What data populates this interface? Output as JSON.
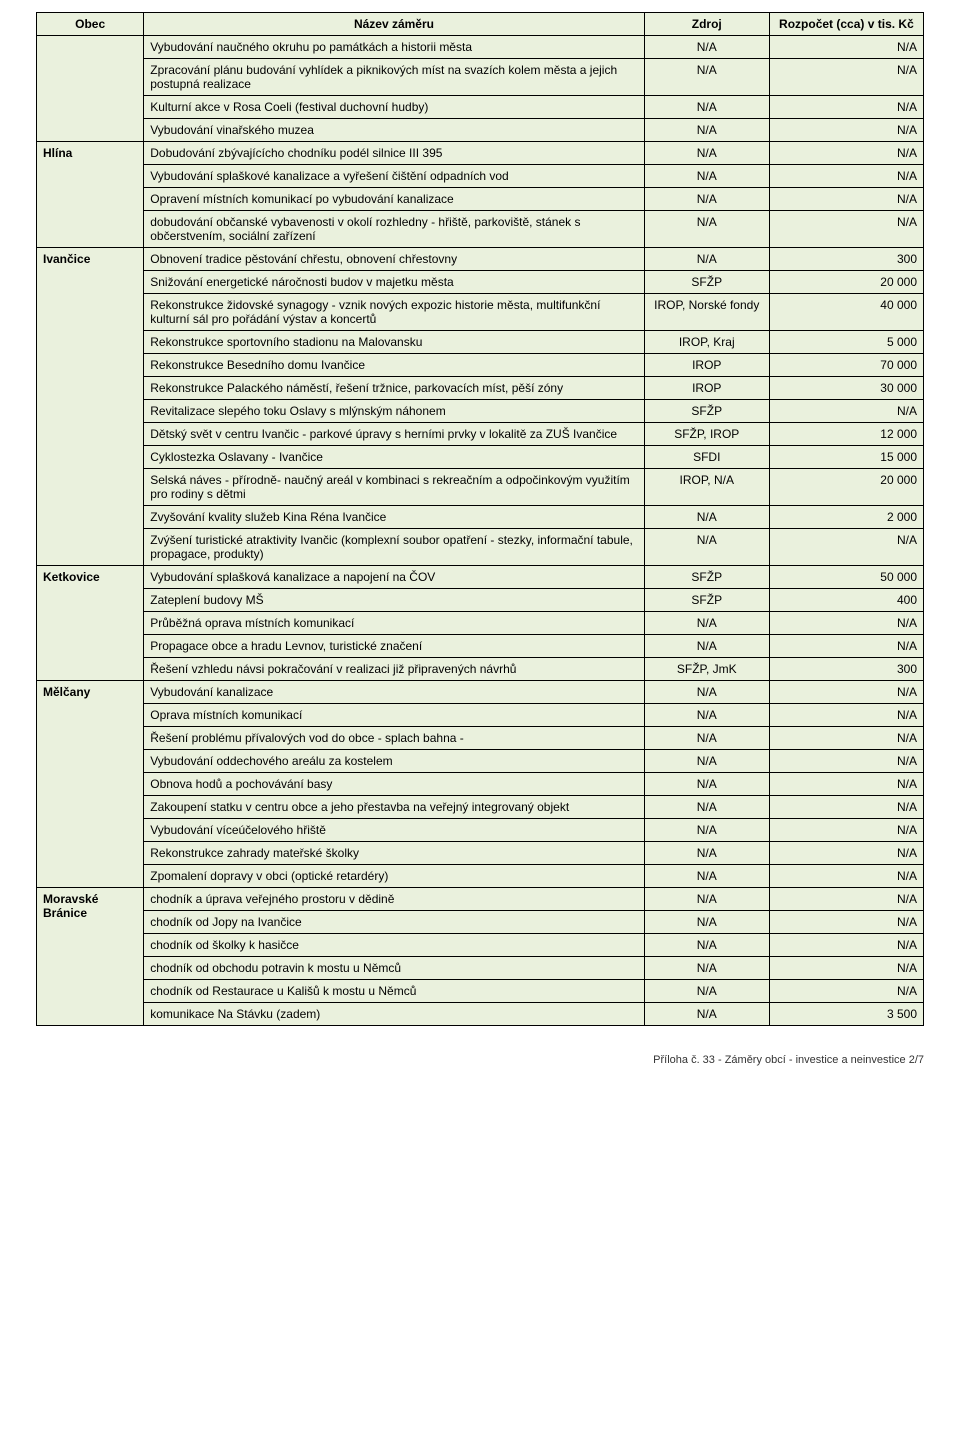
{
  "header": {
    "col_obec": "Obec",
    "col_nazev": "Název záměru",
    "col_zdroj": "Zdroj",
    "col_cena": "Rozpočet (cca) v tis. Kč"
  },
  "footer": "Příloha č. 33 - Záměry obcí - investice a neinvestice 2/7",
  "groups": [
    {
      "obec": "",
      "rows": [
        {
          "nazev": "Vybudování naučného okruhu po památkách a historii města",
          "zdroj": "N/A",
          "cena": "N/A"
        },
        {
          "nazev": "Zpracování  plánu budování vyhlídek a piknikových míst na svazích kolem města a jejich postupná realizace",
          "zdroj": "N/A",
          "cena": "N/A"
        },
        {
          "nazev": "Kulturní akce v Rosa Coeli (festival duchovní hudby)",
          "zdroj": "N/A",
          "cena": "N/A"
        },
        {
          "nazev": "Vybudování vinařského  muzea",
          "zdroj": "N/A",
          "cena": "N/A"
        }
      ]
    },
    {
      "obec": "Hlína",
      "rows": [
        {
          "nazev": "Dobudování zbývajícícho  chodníku podél silnice III 395",
          "zdroj": "N/A",
          "cena": "N/A"
        },
        {
          "nazev": "Vybudování splaškové kanalizace a vyřešení čištění odpadních vod",
          "zdroj": "N/A",
          "cena": "N/A"
        },
        {
          "nazev": "Opravení místních komunikací po vybudování kanalizace",
          "zdroj": "N/A",
          "cena": "N/A"
        },
        {
          "nazev": "dobudování občanské vybavenosti v okolí rozhledny - hřiště, parkoviště, stánek s občerstvením, sociální zařízení",
          "zdroj": "N/A",
          "cena": "N/A"
        }
      ]
    },
    {
      "obec": "Ivančice",
      "rows": [
        {
          "nazev": "Obnovení tradice pěstování chřestu, obnovení chřestovny",
          "zdroj": "N/A",
          "cena": "300"
        },
        {
          "nazev": "Snižování energetické náročnosti budov v majetku města",
          "zdroj": "SFŽP",
          "cena": "20 000"
        },
        {
          "nazev": "Rekonstrukce židovské synagogy - vznik nových expozic historie města, multifunkční kulturní sál pro pořádání výstav a koncertů",
          "zdroj": "IROP, Norské fondy",
          "cena": "40 000"
        },
        {
          "nazev": "Rekonstrukce sportovního stadionu na Malovansku",
          "zdroj": "IROP, Kraj",
          "cena": "5 000"
        },
        {
          "nazev": "Rekonstrukce Besedního domu Ivančice",
          "zdroj": "IROP",
          "cena": "70 000"
        },
        {
          "nazev": "Rekonstrukce Palackého náměstí, řešení tržnice, parkovacích míst, pěší zóny",
          "zdroj": "IROP",
          "cena": "30 000"
        },
        {
          "nazev": "Revitalizace slepého toku Oslavy s mlýnským náhonem",
          "zdroj": "SFŽP",
          "cena": "N/A"
        },
        {
          "nazev": "Dětský svět v centru Ivančic - parkové úpravy s herními prvky v lokalitě za ZUŠ Ivančice",
          "zdroj": "SFŽP, IROP",
          "cena": "12 000"
        },
        {
          "nazev": "Cyklostezka Oslavany - Ivančice",
          "zdroj": "SFDI",
          "cena": "15 000"
        },
        {
          "nazev": "Selská náves - přírodně- naučný areál v kombinaci s rekreačním a odpočinkovým využitím pro rodiny s dětmi",
          "zdroj": "IROP, N/A",
          "cena": "20 000"
        },
        {
          "nazev": "Zvyšování kvality služeb Kina Réna Ivančice",
          "zdroj": "N/A",
          "cena": "2 000"
        },
        {
          "nazev": "Zvýšení turistické atraktivity Ivančic (komplexní soubor opatření - stezky, informační tabule, propagace, produkty)",
          "zdroj": "N/A",
          "cena": "N/A"
        }
      ]
    },
    {
      "obec": "Ketkovice",
      "rows": [
        {
          "nazev": "Vybudování splašková kanalizace a napojení na ČOV",
          "zdroj": "SFŽP",
          "cena": "50 000"
        },
        {
          "nazev": "Zateplení budovy  MŠ",
          "zdroj": "SFŽP",
          "cena": "400"
        },
        {
          "nazev": "Průběžná oprava místních komunikací",
          "zdroj": "N/A",
          "cena": "N/A"
        },
        {
          "nazev": "Propagace obce a hradu Levnov, turistické značení",
          "zdroj": "N/A",
          "cena": "N/A"
        },
        {
          "nazev": "Řešení vzhledu návsi pokračování v realizaci již připravených návrhů",
          "zdroj": "SFŽP, JmK",
          "cena": "300"
        }
      ]
    },
    {
      "obec": "Mělčany",
      "rows": [
        {
          "nazev": "Vybudování kanalizace",
          "zdroj": "N/A",
          "cena": "N/A"
        },
        {
          "nazev": "Oprava místních komunikací",
          "zdroj": "N/A",
          "cena": "N/A"
        },
        {
          "nazev": "Řešení problému přívalových vod do obce - splach bahna -",
          "zdroj": "N/A",
          "cena": "N/A"
        },
        {
          "nazev": "Vybudování oddechového areálu za kostelem",
          "zdroj": "N/A",
          "cena": "N/A"
        },
        {
          "nazev": "Obnova hodů a pochovávání basy",
          "zdroj": "N/A",
          "cena": "N/A"
        },
        {
          "nazev": "Zakoupení statku v centru obce a jeho přestavba  na veřejný integrovaný objekt",
          "zdroj": "N/A",
          "cena": "N/A"
        },
        {
          "nazev": "Vybudování víceúčelového hřiště",
          "zdroj": "N/A",
          "cena": "N/A"
        },
        {
          "nazev": "Rekonstrukce zahrady mateřské školky",
          "zdroj": "N/A",
          "cena": "N/A"
        },
        {
          "nazev": "Zpomalení dopravy v obci (optické retardéry)",
          "zdroj": "N/A",
          "cena": "N/A"
        }
      ]
    },
    {
      "obec": "Moravské Bránice",
      "rows": [
        {
          "nazev": "chodník a úprava veřejného prostoru v dědině",
          "zdroj": "N/A",
          "cena": "N/A"
        },
        {
          "nazev": "chodník od Jopy na Ivančice",
          "zdroj": "N/A",
          "cena": "N/A"
        },
        {
          "nazev": "chodník od školky k hasičce",
          "zdroj": "N/A",
          "cena": "N/A"
        },
        {
          "nazev": "chodník od obchodu potravin k mostu u Němců",
          "zdroj": "N/A",
          "cena": "N/A"
        },
        {
          "nazev": "chodník od Restaurace u Kališů k mostu u Němců",
          "zdroj": "N/A",
          "cena": "N/A"
        },
        {
          "nazev": "komunikace Na Stávku (zadem)",
          "zdroj": "N/A",
          "cena": "3 500"
        }
      ]
    }
  ]
}
